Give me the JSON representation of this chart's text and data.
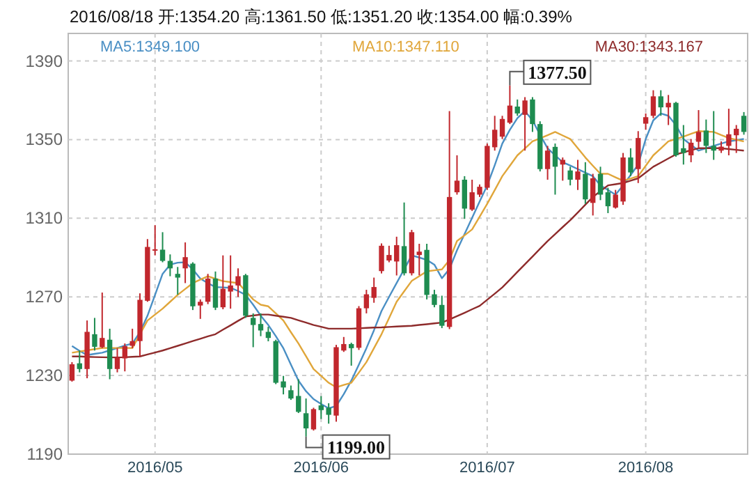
{
  "chart_data": {
    "type": "candlestick",
    "title": "2016/08/18  开:1354.20  高:1361.50  低:1351.20  收:1354.00  幅:0.39%",
    "categories": [
      null,
      null,
      null,
      null,
      null,
      null,
      null,
      null,
      null,
      null,
      null,
      "2016/05",
      null,
      null,
      null,
      null,
      null,
      null,
      null,
      null,
      null,
      null,
      null,
      null,
      null,
      null,
      null,
      null,
      null,
      null,
      null,
      null,
      null,
      "2016/06",
      null,
      null,
      null,
      null,
      null,
      null,
      null,
      null,
      null,
      null,
      null,
      null,
      null,
      null,
      null,
      null,
      null,
      null,
      null,
      null,
      null,
      "2016/07",
      null,
      null,
      null,
      null,
      null,
      null,
      null,
      null,
      null,
      null,
      null,
      null,
      null,
      null,
      null,
      null,
      null,
      null,
      null,
      null,
      "2016/08",
      null,
      null,
      null,
      null,
      null,
      null,
      null,
      null,
      null,
      null,
      null,
      null,
      null
    ],
    "ohlc": [
      [
        1227.4,
        1236.8,
        1226.9,
        1235.7
      ],
      [
        1236.2,
        1242.7,
        1231.6,
        1233.3
      ],
      [
        1233.3,
        1258,
        1228.6,
        1252.2
      ],
      [
        1251,
        1259.3,
        1242.7,
        1244.6
      ],
      [
        1244.4,
        1272.2,
        1243.9,
        1249.1
      ],
      [
        1248.2,
        1253.8,
        1228.1,
        1233.3
      ],
      [
        1233.3,
        1243.9,
        1231.6,
        1239.2
      ],
      [
        1238.7,
        1246.3,
        1232.1,
        1244.9
      ],
      [
        1245.1,
        1253.8,
        1243.9,
        1247.5
      ],
      [
        1247.5,
        1271.8,
        1239.7,
        1268.5
      ],
      [
        1268,
        1299.4,
        1267.5,
        1295.4
      ],
      [
        1293.6,
        1306.5,
        1291.1,
        1294.2
      ],
      [
        1294,
        1302.9,
        1287.6,
        1288.3
      ],
      [
        1288.3,
        1291.6,
        1280.5,
        1284.5
      ],
      [
        1281.7,
        1285.2,
        1271.1,
        1279.8
      ],
      [
        1284.5,
        1297.7,
        1277,
        1290.2
      ],
      [
        1286.9,
        1287.6,
        1263.3,
        1265.2
      ],
      [
        1265.6,
        1268.7,
        1258.8,
        1267.5
      ],
      [
        1267.5,
        1281.7,
        1266.3,
        1279.3
      ],
      [
        1279.3,
        1282.9,
        1263.3,
        1264.5
      ],
      [
        1264.7,
        1291.1,
        1263.7,
        1274.1
      ],
      [
        1272.7,
        1291.1,
        1264,
        1275.8
      ],
      [
        1275.8,
        1284.5,
        1270,
        1280.5
      ],
      [
        1281,
        1281.7,
        1259.3,
        1260.4
      ],
      [
        1259.3,
        1261.6,
        1244.4,
        1255.7
      ],
      [
        1256.2,
        1261.6,
        1250,
        1252.9
      ],
      [
        1252.2,
        1254.8,
        1247.4,
        1249.1
      ],
      [
        1247.5,
        1248.2,
        1225.6,
        1226.3
      ],
      [
        1227,
        1229.8,
        1220.4,
        1223.9
      ],
      [
        1222.5,
        1224.9,
        1217.6,
        1218.3
      ],
      [
        1219.6,
        1228.1,
        1210.9,
        1211.5
      ],
      [
        1210.8,
        1218.3,
        1199,
        1203.1
      ],
      [
        1202.6,
        1213.6,
        1202,
        1212.9
      ],
      [
        1214.8,
        1219.5,
        1207.9,
        1212.4
      ],
      [
        1213.6,
        1215.9,
        1205.5,
        1210
      ],
      [
        1209.6,
        1245.6,
        1206.5,
        1244.4
      ],
      [
        1242.7,
        1249.6,
        1242,
        1246
      ],
      [
        1246,
        1246.7,
        1235,
        1243.9
      ],
      [
        1244.1,
        1265.3,
        1243,
        1264.2
      ],
      [
        1264.2,
        1273.6,
        1261.6,
        1271.3
      ],
      [
        1269.5,
        1279.8,
        1267,
        1275
      ],
      [
        1283.1,
        1297.2,
        1281.9,
        1296
      ],
      [
        1288.5,
        1296,
        1287.6,
        1291.3
      ],
      [
        1288,
        1300.6,
        1280.9,
        1296.3
      ],
      [
        1295.8,
        1318,
        1280.9,
        1282
      ],
      [
        1282,
        1304.1,
        1280.9,
        1302.9
      ],
      [
        1291.3,
        1297,
        1281,
        1293
      ],
      [
        1293.9,
        1297,
        1268.7,
        1271
      ],
      [
        1271.3,
        1273.6,
        1264.7,
        1265.9
      ],
      [
        1265.9,
        1270.6,
        1254.1,
        1255.3
      ],
      [
        1254.7,
        1364.5,
        1253.6,
        1320.8
      ],
      [
        1323.2,
        1342,
        1322,
        1329.1
      ],
      [
        1329.6,
        1331.4,
        1309.7,
        1314.9
      ],
      [
        1314.4,
        1329.6,
        1313.7,
        1323.2
      ],
      [
        1322,
        1327.2,
        1320.8,
        1326
      ],
      [
        1325.5,
        1348,
        1324.4,
        1346.8
      ],
      [
        1346.1,
        1362.1,
        1344.4,
        1355
      ],
      [
        1351.5,
        1362.1,
        1350.3,
        1360.5
      ],
      [
        1358.6,
        1377.5,
        1357.9,
        1367.3
      ],
      [
        1366.8,
        1370.4,
        1362.1,
        1363.3
      ],
      [
        1362.6,
        1371.6,
        1344.4,
        1369.9
      ],
      [
        1370.4,
        1371.6,
        1353.9,
        1357.9
      ],
      [
        1357.9,
        1359.3,
        1333.8,
        1335
      ],
      [
        1335,
        1346.8,
        1329.6,
        1344.4
      ],
      [
        1346.3,
        1348,
        1322,
        1336.2
      ],
      [
        1337.3,
        1340.9,
        1329.1,
        1339.7
      ],
      [
        1334.3,
        1336.2,
        1326.7,
        1329.6
      ],
      [
        1329.6,
        1339.7,
        1324.4,
        1333.8
      ],
      [
        1332.6,
        1338.5,
        1317.3,
        1319.6
      ],
      [
        1317.8,
        1332.6,
        1311.4,
        1330.3
      ],
      [
        1332.6,
        1336.2,
        1319.2,
        1322
      ],
      [
        1323.2,
        1325.5,
        1312.6,
        1316.1
      ],
      [
        1315.4,
        1324.4,
        1314.9,
        1322
      ],
      [
        1318.5,
        1343.2,
        1316.8,
        1340.9
      ],
      [
        1340.9,
        1345.6,
        1331.4,
        1333.3
      ],
      [
        1335,
        1354.3,
        1327.9,
        1350.8
      ],
      [
        1358.1,
        1363.3,
        1355,
        1361.4
      ],
      [
        1362.1,
        1375.1,
        1360.9,
        1372
      ],
      [
        1372,
        1375.1,
        1362.1,
        1366.4
      ],
      [
        1366.4,
        1372.7,
        1357.4,
        1368.7
      ],
      [
        1368.7,
        1369.2,
        1341.3,
        1342
      ],
      [
        1345.6,
        1357.4,
        1337.3,
        1343.2
      ],
      [
        1342,
        1350.3,
        1338.5,
        1348.4
      ],
      [
        1348.9,
        1365,
        1345.6,
        1353.9
      ],
      [
        1354.6,
        1360.2,
        1343.2,
        1346.8
      ],
      [
        1346.8,
        1364.5,
        1339.7,
        1344.4
      ],
      [
        1344.4,
        1349.1,
        1343.2,
        1346.4
      ],
      [
        1346.8,
        1365.7,
        1342,
        1352.7
      ],
      [
        1352.2,
        1357.4,
        1343.2,
        1355.5
      ],
      [
        1362.1,
        1364,
        1352.5,
        1353.9
      ]
    ],
    "colors": [
      "#c1272d",
      "#1e8c50",
      "#c1272d",
      "#1e8c50",
      "#c1272d",
      "#1e8c50",
      "#c1272d",
      "#c1272d",
      "#c1272d",
      "#c1272d",
      "#c1272d",
      "#c1272d",
      "#1e8c50",
      "#1e8c50",
      "#1e8c50",
      "#c1272d",
      "#1e8c50",
      "#c1272d",
      "#c1272d",
      "#1e8c50",
      "#c1272d",
      "#c1272d",
      "#c1272d",
      "#1e8c50",
      "#1e8c50",
      "#1e8c50",
      "#1e8c50",
      "#1e8c50",
      "#1e8c50",
      "#1e8c50",
      "#1e8c50",
      "#1e8c50",
      "#c1272d",
      "#1e8c50",
      "#1e8c50",
      "#c1272d",
      "#c1272d",
      "#1e8c50",
      "#c1272d",
      "#c1272d",
      "#c1272d",
      "#c1272d",
      "#c1272d",
      "#c1272d",
      "#1e8c50",
      "#c1272d",
      "#c1272d",
      "#1e8c50",
      "#1e8c50",
      "#1e8c50",
      "#c1272d",
      "#c1272d",
      "#1e8c50",
      "#c1272d",
      "#c1272d",
      "#c1272d",
      "#c1272d",
      "#c1272d",
      "#c1272d",
      "#1e8c50",
      "#c1272d",
      "#1e8c50",
      "#1e8c50",
      "#c1272d",
      "#1e8c50",
      "#c1272d",
      "#1e8c50",
      "#c1272d",
      "#1e8c50",
      "#c1272d",
      "#1e8c50",
      "#1e8c50",
      "#c1272d",
      "#c1272d",
      "#1e8c50",
      "#c1272d",
      "#c1272d",
      "#c1272d",
      "#1e8c50",
      "#c1272d",
      "#1e8c50",
      "#1e8c50",
      "#c1272d",
      "#c1272d",
      "#1e8c50",
      "#1e8c50",
      "#c1272d",
      "#c1272d",
      "#c1272d",
      "#1e8c50"
    ],
    "series": [
      {
        "name": "MA5:1349.100",
        "type": "line",
        "color": "#4a8fc4",
        "values": [
          1245,
          1242.5,
          1240.4,
          1241,
          1241.6,
          1242.8,
          1244,
          1245.2,
          1246.3,
          1252,
          1260.4,
          1271,
          1281.7,
          1286.4,
          1287.4,
          1287.6,
          1284,
          1279.3,
          1277,
          1275,
          1274.8,
          1274.6,
          1273,
          1271,
          1266,
          1260.4,
          1255.7,
          1250,
          1243.9,
          1235.5,
          1227.4,
          1222,
          1218,
          1215.5,
          1213.3,
          1214.5,
          1220.5,
          1227.4,
          1235.5,
          1243.9,
          1253,
          1262.8,
          1270,
          1277,
          1284,
          1291.1,
          1290,
          1288.8,
          1286.4,
          1279.5,
          1284.2,
          1293.7,
          1302,
          1310.2,
          1318.5,
          1326.7,
          1337,
          1348,
          1355,
          1360.9,
          1364.5,
          1359.8,
          1352.5,
          1345.6,
          1342,
          1338.5,
          1336.8,
          1335,
          1333.2,
          1331.4,
          1326.7,
          1324.4,
          1322,
          1326.7,
          1332,
          1337.3,
          1350.3,
          1359.8,
          1363.3,
          1362.1,
          1357.4,
          1350.3,
          1347.3,
          1344.4,
          1345.6,
          1346.8,
          1348,
          1349.1,
          1349.7,
          1350.3
        ]
      },
      {
        "name": "MA10:1347.110",
        "type": "line",
        "color": "#e0a63a",
        "values": [
          1241.6,
          1242.2,
          1242.8,
          1243.4,
          1244,
          1244,
          1244,
          1244,
          1244,
          1251,
          1258,
          1261,
          1264,
          1267.5,
          1271,
          1274,
          1277,
          1278.8,
          1280.5,
          1279.2,
          1278,
          1277.5,
          1277,
          1273,
          1268.7,
          1266,
          1265.2,
          1261.6,
          1258,
          1252,
          1246.3,
          1239.8,
          1233.3,
          1229.8,
          1226.3,
          1224,
          1225.2,
          1226.3,
          1231.5,
          1236.8,
          1243.9,
          1251,
          1259.2,
          1267.5,
          1272.8,
          1278.1,
          1280.5,
          1283,
          1283.5,
          1284,
          1288.8,
          1298.4,
          1301.3,
          1304.3,
          1310.8,
          1317.3,
          1324.3,
          1331.4,
          1336.7,
          1342,
          1345.5,
          1349.1,
          1350.6,
          1352.2,
          1353.9,
          1352.1,
          1350.3,
          1345.6,
          1340.9,
          1336.7,
          1332.6,
          1332.6,
          1330.8,
          1329.1,
          1330.2,
          1331.4,
          1336.7,
          1342,
          1345.5,
          1349.1,
          1350.3,
          1351.5,
          1352.9,
          1354.3,
          1354.1,
          1353.9,
          1352.3,
          1350.8,
          1349.9,
          1349.1
        ]
      },
      {
        "name": "MA30:1343.167",
        "type": "line",
        "color": "#8e2b2b",
        "values": [
          1239.7,
          1239.7,
          1239.5,
          1239.4,
          1239.3,
          1239.2,
          1239.2,
          1239.3,
          1239.5,
          1239.7,
          1240.7,
          1241.7,
          1242.7,
          1243.9,
          1245.1,
          1246.3,
          1247.5,
          1248.7,
          1249.9,
          1251,
          1253.3,
          1255.5,
          1257.8,
          1260,
          1260.5,
          1261,
          1261,
          1260.4,
          1259.9,
          1259.3,
          1258.1,
          1256.9,
          1255.7,
          1254.8,
          1253.8,
          1253.8,
          1253.8,
          1253.8,
          1254,
          1254.2,
          1254.4,
          1254.5,
          1254.7,
          1254.9,
          1255.1,
          1255.3,
          1255.7,
          1256.1,
          1256.5,
          1256.9,
          1258.5,
          1260.2,
          1261.9,
          1263.7,
          1265.4,
          1268.5,
          1271.6,
          1274.8,
          1278.7,
          1282.7,
          1286.6,
          1290.5,
          1294.5,
          1298.4,
          1301.9,
          1305.5,
          1309,
          1312.9,
          1316.9,
          1320.8,
          1323.8,
          1326.7,
          1327.3,
          1327.9,
          1329.1,
          1330.3,
          1333.2,
          1336.2,
          1338.3,
          1340.4,
          1342.5,
          1343.5,
          1344.6,
          1345.6,
          1345.6,
          1345.6,
          1345.6,
          1345.2,
          1344.8,
          1344.4
        ]
      }
    ],
    "ylim": [
      1190,
      1404
    ],
    "yticks": [
      1190,
      1230,
      1270,
      1310,
      1350,
      1390
    ],
    "grid": true,
    "legend": "top",
    "annotations": [
      "1377.50",
      "1199.00"
    ]
  }
}
